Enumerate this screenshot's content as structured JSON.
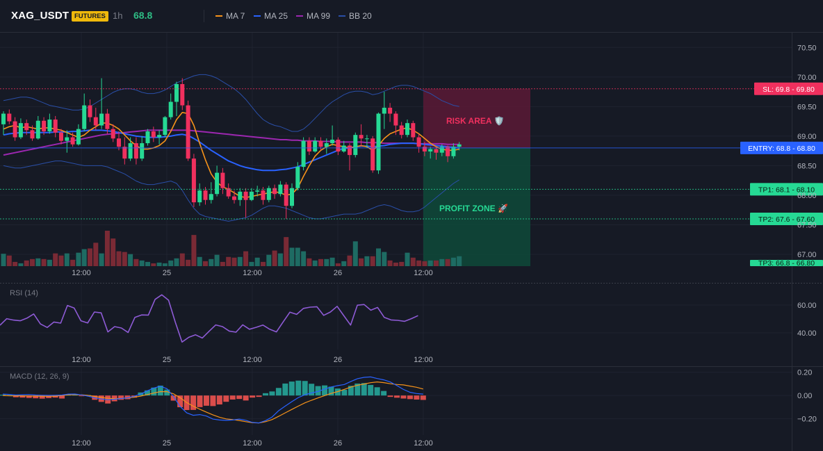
{
  "header": {
    "symbol": "XAG_USDT",
    "badge": "FUTURES",
    "interval": "1h",
    "price": "68.8"
  },
  "legend": [
    {
      "label": "MA 7",
      "color": "#f7931a"
    },
    {
      "label": "MA 25",
      "color": "#2962ff"
    },
    {
      "label": "MA 99",
      "color": "#9c27b0"
    },
    {
      "label": "BB 20",
      "color": "#2a4fa8"
    }
  ],
  "colors": {
    "up": "#26d994",
    "down": "#f0305e",
    "vol_up": "#1e6b63",
    "vol_down": "#7a2a35",
    "ma7": "#f7931a",
    "ma25": "#2962ff",
    "ma99": "#9c27b0",
    "bb": "#2a4fa8",
    "rsi": "#8e5bd6",
    "macd": "#2962ff",
    "signal": "#f7931a"
  },
  "main_axis": {
    "ticks": [
      "70.50",
      "70.00",
      "69.50",
      "69.00",
      "68.50",
      "68.00",
      "67.50",
      "67.00"
    ],
    "ylim": [
      66.8,
      70.75
    ]
  },
  "time_axis": [
    "12:00",
    "25",
    "12:00",
    "26",
    "12:00"
  ],
  "levels": {
    "sl": {
      "label": "SL: 69.8 - 69.80",
      "value": 69.8,
      "color": "#f0305e"
    },
    "entry": {
      "label": "ENTRY: 68.8 - 68.80",
      "value": 68.8,
      "color": "#2962ff"
    },
    "tp1": {
      "label": "TP1: 68.1 - 68.10",
      "value": 68.1,
      "color": "#26d994"
    },
    "tp2": {
      "label": "TP2: 67.6 - 67.60",
      "value": 67.6,
      "color": "#26d994"
    },
    "tp3": {
      "label": "TP3: 66.8 - 66.80",
      "value": 66.8,
      "color": "#26d994"
    }
  },
  "zones": {
    "risk": "RISK AREA 🛡️",
    "profit": "PROFIT ZONE 🚀"
  },
  "rsi": {
    "title": "RSI (14)",
    "ticks": [
      "60.00",
      "40.00"
    ],
    "ylim": [
      28,
      75
    ],
    "values": [
      45.5,
      50.2,
      49.2,
      48.7,
      50.6,
      53.6,
      46.4,
      43.9,
      47.8,
      47.0,
      59.7,
      57.9,
      48.7,
      47.1,
      55.0,
      54.4,
      40.7,
      44.5,
      43.5,
      40.3,
      51.1,
      52.9,
      52.8,
      64.1,
      67.4,
      63.5,
      47.7,
      33.4,
      36.8,
      38.6,
      36.3,
      41.1,
      45.7,
      44.5,
      41.3,
      40.5,
      45.8,
      42.6,
      44.0,
      45.6,
      42.6,
      40.7,
      47.9,
      54.9,
      53.3,
      57.6,
      58.5,
      58.8,
      52.6,
      55.0,
      59.1,
      52.3,
      45.6,
      59.9,
      60.4,
      56.3,
      58.3,
      51.1,
      49.3,
      49.0,
      48.3,
      50.2,
      52.4
    ]
  },
  "macd": {
    "title": "MACD (12, 26, 9)",
    "ticks": [
      "0.20",
      "0.00",
      "−0.20"
    ],
    "ylim": [
      -0.34,
      0.24
    ],
    "histogram": [
      0.007,
      0.003,
      -0.015,
      -0.018,
      -0.021,
      -0.024,
      -0.027,
      -0.022,
      -0.018,
      -0.026,
      0.012,
      0.008,
      -0.002,
      0.004,
      -0.037,
      -0.055,
      -0.069,
      -0.05,
      -0.037,
      -0.032,
      -0.018,
      0.026,
      0.044,
      0.068,
      0.085,
      0.051,
      -0.044,
      -0.101,
      -0.125,
      -0.124,
      -0.1,
      -0.088,
      -0.091,
      -0.077,
      -0.054,
      -0.035,
      -0.03,
      -0.043,
      -0.018,
      -0.012,
      0.02,
      0.035,
      0.065,
      0.103,
      0.12,
      0.128,
      0.125,
      0.101,
      0.081,
      0.087,
      0.076,
      0.06,
      0.049,
      0.083,
      0.103,
      0.107,
      0.091,
      0.071,
      0.039,
      -0.012,
      -0.019,
      -0.026,
      -0.031,
      -0.035,
      -0.038
    ],
    "macd_line": [
      0.012,
      0.009,
      0.004,
      0.006,
      0.008,
      0.004,
      0.002,
      0.001,
      0.002,
      0.004,
      0.012,
      0.013,
      0.005,
      -0.006,
      -0.02,
      -0.03,
      -0.036,
      -0.032,
      -0.026,
      -0.02,
      -0.007,
      0.012,
      0.04,
      0.064,
      0.08,
      0.058,
      -0.01,
      -0.094,
      -0.149,
      -0.17,
      -0.164,
      -0.177,
      -0.203,
      -0.211,
      -0.214,
      -0.211,
      -0.203,
      -0.213,
      -0.232,
      -0.236,
      -0.216,
      -0.185,
      -0.131,
      -0.091,
      -0.053,
      -0.018,
      0.006,
      0.022,
      0.035,
      0.055,
      0.074,
      0.085,
      0.095,
      0.121,
      0.145,
      0.156,
      0.16,
      0.146,
      0.135,
      0.116,
      0.085,
      0.052,
      0.028,
      0.017,
      0.012
    ],
    "signal_line": [
      0.0,
      -0.002,
      -0.003,
      -0.003,
      -0.004,
      -0.006,
      -0.006,
      -0.007,
      -0.005,
      0.0,
      0.006,
      0.007,
      0.006,
      0.001,
      -0.008,
      -0.017,
      -0.024,
      -0.027,
      -0.025,
      -0.021,
      -0.014,
      -0.005,
      0.008,
      0.021,
      0.033,
      0.033,
      0.014,
      -0.019,
      -0.061,
      -0.092,
      -0.118,
      -0.143,
      -0.167,
      -0.187,
      -0.201,
      -0.207,
      -0.215,
      -0.225,
      -0.234,
      -0.236,
      -0.225,
      -0.207,
      -0.179,
      -0.149,
      -0.12,
      -0.091,
      -0.063,
      -0.041,
      -0.021,
      -0.001,
      0.018,
      0.034,
      0.053,
      0.073,
      0.088,
      0.099,
      0.11,
      0.117,
      0.111,
      0.101,
      0.095,
      0.091,
      0.081,
      0.071,
      0.056
    ]
  },
  "price_data": {
    "x_start": 1,
    "x_step": 8.3,
    "candles": [
      [
        69.2,
        69.38,
        69.02,
        69.42
      ],
      [
        69.38,
        69.25,
        69.2,
        69.45
      ],
      [
        69.25,
        68.98,
        68.92,
        69.32
      ],
      [
        68.98,
        69.22,
        68.95,
        69.3
      ],
      [
        69.22,
        69.1,
        69.02,
        69.28
      ],
      [
        69.1,
        68.96,
        68.92,
        69.18
      ],
      [
        68.96,
        69.26,
        68.94,
        69.34
      ],
      [
        69.26,
        69.08,
        69.02,
        69.32
      ],
      [
        69.08,
        69.28,
        69.04,
        69.38
      ],
      [
        69.28,
        69.06,
        68.98,
        69.34
      ],
      [
        69.06,
        68.92,
        68.86,
        69.12
      ],
      [
        68.92,
        68.98,
        68.72,
        69.1
      ],
      [
        68.98,
        68.86,
        68.82,
        69.06
      ],
      [
        68.86,
        69.12,
        68.84,
        69.2
      ],
      [
        69.12,
        69.52,
        69.08,
        69.72
      ],
      [
        69.52,
        69.32,
        69.24,
        69.62
      ],
      [
        69.32,
        69.18,
        69.1,
        69.48
      ],
      [
        69.18,
        69.38,
        69.12,
        69.98
      ],
      [
        69.38,
        69.12,
        69.04,
        69.46
      ],
      [
        69.12,
        68.96,
        68.9,
        69.2
      ],
      [
        68.96,
        68.82,
        68.76,
        69.08
      ],
      [
        68.82,
        68.62,
        68.52,
        68.98
      ],
      [
        68.62,
        68.88,
        68.58,
        68.98
      ],
      [
        68.88,
        68.62,
        68.52,
        68.98
      ],
      [
        68.62,
        68.88,
        68.58,
        69.0
      ],
      [
        68.88,
        69.08,
        68.84,
        69.12
      ],
      [
        69.08,
        68.98,
        68.9,
        69.16
      ],
      [
        68.98,
        69.02,
        68.86,
        69.1
      ],
      [
        69.02,
        69.32,
        68.98,
        69.34
      ],
      [
        69.32,
        69.58,
        69.28,
        69.72
      ],
      [
        69.58,
        69.88,
        69.34,
        69.92
      ],
      [
        69.88,
        69.52,
        69.44,
        69.98
      ],
      [
        69.52,
        68.62,
        68.58,
        69.6
      ],
      [
        68.62,
        67.88,
        67.8,
        68.7
      ],
      [
        67.88,
        68.08,
        67.82,
        68.2
      ],
      [
        68.08,
        67.92,
        67.84,
        68.14
      ],
      [
        67.92,
        68.02,
        67.86,
        68.22
      ],
      [
        68.02,
        68.38,
        67.98,
        68.5
      ],
      [
        68.38,
        68.12,
        68.02,
        68.46
      ],
      [
        68.12,
        67.98,
        67.94,
        68.2
      ],
      [
        67.98,
        67.92,
        67.86,
        68.08
      ],
      [
        67.92,
        68.06,
        67.82,
        68.12
      ],
      [
        68.06,
        67.92,
        67.62,
        68.12
      ],
      [
        67.92,
        68.06,
        67.9,
        68.12
      ],
      [
        68.06,
        68.08,
        67.98,
        68.16
      ],
      [
        68.08,
        67.92,
        67.84,
        68.14
      ],
      [
        67.92,
        68.12,
        67.88,
        68.16
      ],
      [
        68.12,
        68.02,
        67.94,
        68.18
      ],
      [
        68.02,
        68.18,
        67.98,
        68.24
      ],
      [
        68.18,
        67.82,
        67.6,
        68.22
      ],
      [
        67.82,
        68.12,
        67.78,
        68.2
      ],
      [
        68.12,
        68.48,
        68.08,
        68.56
      ],
      [
        68.48,
        68.92,
        68.42,
        68.98
      ],
      [
        68.92,
        68.74,
        68.68,
        68.98
      ],
      [
        68.74,
        68.92,
        68.72,
        68.98
      ],
      [
        68.92,
        68.82,
        68.76,
        68.98
      ],
      [
        68.82,
        68.88,
        68.7,
        68.96
      ],
      [
        68.88,
        68.94,
        68.84,
        69.18
      ],
      [
        68.94,
        68.74,
        68.68,
        68.98
      ],
      [
        68.74,
        68.84,
        68.72,
        68.92
      ],
      [
        68.84,
        68.68,
        68.42,
        68.88
      ],
      [
        68.68,
        69.02,
        68.64,
        69.06
      ],
      [
        69.02,
        68.96,
        68.82,
        69.2
      ],
      [
        68.96,
        68.96,
        68.8,
        69.02
      ],
      [
        68.96,
        68.42,
        68.38,
        69.0
      ],
      [
        68.42,
        69.38,
        68.36,
        69.4
      ],
      [
        69.38,
        69.48,
        69.12,
        69.75
      ],
      [
        69.48,
        69.38,
        69.24,
        69.56
      ],
      [
        69.38,
        69.18,
        69.02,
        69.42
      ],
      [
        69.18,
        69.02,
        68.96,
        69.24
      ],
      [
        69.02,
        69.22,
        68.98,
        69.28
      ],
      [
        69.22,
        68.98,
        68.92,
        69.26
      ],
      [
        68.98,
        68.82,
        68.72,
        69.04
      ],
      [
        68.82,
        68.74,
        68.66,
        68.9
      ],
      [
        68.74,
        68.78,
        68.62,
        68.82
      ],
      [
        68.78,
        68.72,
        68.6,
        68.82
      ],
      [
        68.72,
        68.82,
        68.66,
        68.86
      ],
      [
        68.82,
        68.66,
        68.56,
        68.84
      ],
      [
        68.66,
        68.82,
        68.62,
        68.88
      ],
      [
        68.82,
        68.86,
        68.76,
        68.9
      ]
    ],
    "ma7": [
      69.12,
      69.16,
      69.18,
      69.14,
      69.16,
      69.14,
      69.12,
      69.14,
      69.14,
      69.12,
      69.1,
      69.06,
      69.02,
      68.98,
      69.02,
      69.1,
      69.16,
      69.22,
      69.22,
      69.18,
      69.12,
      69.02,
      68.92,
      68.84,
      68.78,
      68.78,
      68.8,
      68.84,
      68.92,
      69.08,
      69.28,
      69.4,
      69.38,
      69.18,
      68.88,
      68.6,
      68.36,
      68.22,
      68.14,
      68.1,
      68.04,
      67.98,
      67.96,
      67.98,
      68.0,
      68.02,
      68.04,
      68.06,
      68.04,
      68.0,
      68.02,
      68.12,
      68.32,
      68.5,
      68.66,
      68.76,
      68.82,
      68.86,
      68.84,
      68.82,
      68.8,
      68.82,
      68.84,
      68.82,
      68.76,
      68.84,
      68.96,
      69.04,
      69.08,
      69.12,
      69.14,
      69.1,
      69.04,
      68.96,
      68.88,
      68.82,
      68.78,
      68.76,
      68.76,
      68.78
    ],
    "ma25": [
      69.02,
      69.04,
      69.05,
      69.06,
      69.06,
      69.06,
      69.06,
      69.06,
      69.06,
      69.07,
      69.07,
      69.07,
      69.08,
      69.08,
      69.09,
      69.1,
      69.1,
      69.1,
      69.09,
      69.08,
      69.06,
      69.04,
      69.02,
      69.0,
      68.99,
      68.98,
      68.98,
      68.98,
      68.99,
      69.0,
      69.02,
      69.03,
      69.01,
      68.96,
      68.9,
      68.83,
      68.76,
      68.7,
      68.64,
      68.58,
      68.54,
      68.5,
      68.47,
      68.45,
      68.43,
      68.42,
      68.42,
      68.42,
      68.43,
      68.44,
      68.46,
      68.48,
      68.52,
      68.56,
      68.6,
      68.64,
      68.68,
      68.72,
      68.76,
      68.79,
      68.8,
      68.82,
      68.83,
      68.83,
      68.82,
      68.83,
      68.84,
      68.86,
      68.87,
      68.88,
      68.88,
      68.88,
      68.87,
      68.86,
      68.85,
      68.84,
      68.83,
      68.82,
      68.81,
      68.8
    ],
    "ma99": [
      68.68,
      68.7,
      68.72,
      68.74,
      68.76,
      68.78,
      68.8,
      68.82,
      68.84,
      68.86,
      68.88,
      68.9,
      68.92,
      68.94,
      68.96,
      68.98,
      69.0,
      69.02,
      69.03,
      69.04,
      69.05,
      69.06,
      69.07,
      69.08,
      69.09,
      69.1,
      69.1,
      69.1,
      69.1,
      69.1,
      69.1,
      69.1,
      69.1,
      69.09,
      69.08,
      69.07,
      69.06,
      69.05,
      69.04,
      69.03,
      69.02,
      69.01,
      69.0,
      68.99,
      68.98,
      68.97,
      68.96,
      68.95,
      68.94,
      68.94,
      68.93,
      68.93,
      68.92,
      68.92,
      68.92,
      68.91,
      68.91,
      68.91,
      68.9,
      68.9,
      68.9,
      68.9,
      68.9,
      68.89,
      68.89,
      68.89,
      68.88,
      68.88,
      68.88,
      68.88,
      68.88,
      68.88,
      68.87,
      68.87,
      68.87,
      68.87,
      68.87,
      68.86,
      68.86,
      68.86
    ],
    "bb_upper": [
      69.6,
      69.62,
      69.64,
      69.66,
      69.66,
      69.64,
      69.6,
      69.56,
      69.52,
      69.5,
      69.48,
      69.46,
      69.44,
      69.44,
      69.46,
      69.5,
      69.56,
      69.62,
      69.68,
      69.74,
      69.78,
      69.8,
      69.8,
      69.78,
      69.74,
      69.72,
      69.72,
      69.74,
      69.78,
      69.84,
      69.9,
      69.94,
      69.98,
      70.02,
      70.04,
      70.04,
      70.02,
      69.98,
      69.92,
      69.86,
      69.8,
      69.72,
      69.62,
      69.5,
      69.38,
      69.28,
      69.22,
      69.18,
      69.16,
      69.12,
      69.08,
      69.08,
      69.12,
      69.2,
      69.3,
      69.4,
      69.5,
      69.58,
      69.64,
      69.7,
      69.74,
      69.76,
      69.76,
      69.74,
      69.7,
      69.72,
      69.76,
      69.8,
      69.84,
      69.86,
      69.86,
      69.84,
      69.8,
      69.76,
      69.72,
      69.66,
      69.6,
      69.56,
      69.52,
      69.5
    ],
    "bb_lower": [
      68.5,
      68.48,
      68.46,
      68.46,
      68.48,
      68.5,
      68.52,
      68.54,
      68.56,
      68.58,
      68.58,
      68.56,
      68.54,
      68.52,
      68.5,
      68.5,
      68.5,
      68.5,
      68.48,
      68.44,
      68.4,
      68.36,
      68.3,
      68.24,
      68.2,
      68.18,
      68.18,
      68.2,
      68.22,
      68.24,
      68.2,
      68.08,
      67.92,
      67.78,
      67.68,
      67.64,
      67.62,
      67.6,
      67.58,
      67.56,
      67.58,
      67.6,
      67.62,
      67.66,
      67.72,
      67.78,
      67.82,
      67.82,
      67.8,
      67.78,
      67.74,
      67.7,
      67.66,
      67.62,
      67.6,
      67.6,
      67.62,
      67.64,
      67.66,
      67.68,
      67.68,
      67.68,
      67.7,
      67.74,
      67.78,
      67.82,
      67.84,
      67.82,
      67.78,
      67.74,
      67.72,
      67.72,
      67.74,
      67.8,
      67.88,
      67.96,
      68.04,
      68.12,
      68.2,
      68.26
    ],
    "volume": [
      0.35,
      0.3,
      0.12,
      0.08,
      0.16,
      0.2,
      0.22,
      0.2,
      0.18,
      0.36,
      0.3,
      0.36,
      0.18,
      0.38,
      0.48,
      0.5,
      0.66,
      0.36,
      1.0,
      0.78,
      0.42,
      0.4,
      0.34,
      0.2,
      0.16,
      0.12,
      0.08,
      0.1,
      0.08,
      0.16,
      0.22,
      0.36,
      0.18,
      0.88,
      0.26,
      0.14,
      0.2,
      0.32,
      0.12,
      0.26,
      0.24,
      0.26,
      0.42,
      0.12,
      0.24,
      0.12,
      0.32,
      0.44,
      0.36,
      0.82,
      0.52,
      0.52,
      0.42,
      0.22,
      0.16,
      0.2,
      0.2,
      0.24,
      0.08,
      0.14,
      0.3,
      0.7,
      0.22,
      0.28,
      0.28,
      0.5,
      0.4,
      0.16,
      0.1,
      0.12,
      0.38,
      0.24,
      0.16,
      0.14,
      0.16,
      0.16,
      0.2,
      0.2,
      0.24,
      0.28
    ]
  }
}
